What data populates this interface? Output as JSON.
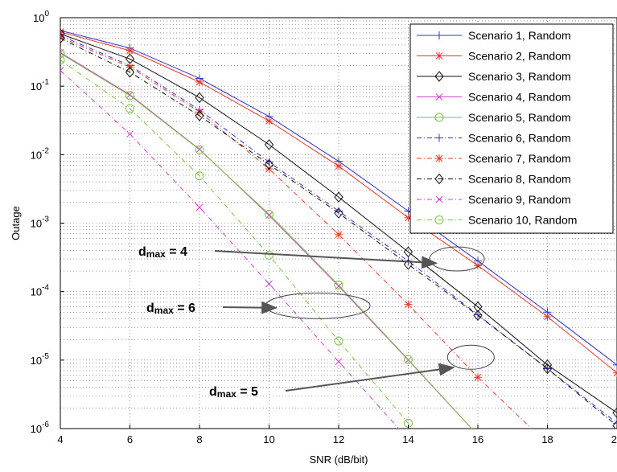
{
  "chart_data": {
    "type": "line",
    "title": "",
    "xlabel": "SNR (dB/bit)",
    "ylabel": "Outage",
    "xlim": [
      4,
      20
    ],
    "ylim": [
      1e-06,
      1
    ],
    "yscale": "log",
    "grid": true,
    "legend_position": "top-right",
    "x_ticks": [
      4,
      6,
      8,
      10,
      12,
      14,
      16,
      18,
      20
    ],
    "y_ticks": [
      {
        "base": "10",
        "exp": "0",
        "value": 1
      },
      {
        "base": "10",
        "exp": "-1",
        "value": 0.1
      },
      {
        "base": "10",
        "exp": "-2",
        "value": 0.01
      },
      {
        "base": "10",
        "exp": "-3",
        "value": 0.001
      },
      {
        "base": "10",
        "exp": "-4",
        "value": 0.0001
      },
      {
        "base": "10",
        "exp": "-5",
        "value": 1e-05
      },
      {
        "base": "10",
        "exp": "-6",
        "value": 1e-06
      }
    ],
    "series": [
      {
        "name": "Scenario 1, Random",
        "color": "#3333cc",
        "dash": "solid",
        "marker": "plus",
        "x": [
          4,
          6,
          8,
          10,
          12,
          14,
          16,
          18,
          20
        ],
        "y": [
          0.65,
          0.36,
          0.13,
          0.036,
          0.008,
          0.0015,
          0.00028,
          5e-05,
          8.5e-06
        ]
      },
      {
        "name": "Scenario 2, Random",
        "color": "#e23b2e",
        "dash": "solid",
        "marker": "star",
        "x": [
          4,
          6,
          8,
          10,
          12,
          14,
          16,
          18,
          20
        ],
        "y": [
          0.62,
          0.33,
          0.115,
          0.031,
          0.0068,
          0.0012,
          0.00024,
          4.3e-05,
          6.5e-06
        ]
      },
      {
        "name": "Scenario 3, Random",
        "color": "#111111",
        "dash": "solid",
        "marker": "diamond",
        "x": [
          4,
          6,
          8,
          10,
          12,
          14,
          16,
          18,
          20
        ],
        "y": [
          0.58,
          0.25,
          0.068,
          0.014,
          0.0024,
          0.00038,
          6e-05,
          8.5e-06,
          1.7e-06
        ]
      },
      {
        "name": "Scenario 4, Random",
        "color": "#cc44cc",
        "dash": "solid",
        "marker": "x",
        "x": [
          4,
          6,
          8,
          10,
          12,
          14,
          16
        ],
        "y": [
          0.31,
          0.075,
          0.012,
          0.0013,
          0.00012,
          1e-05,
          8e-07
        ]
      },
      {
        "name": "Scenario 5, Random",
        "color": "#7cc242",
        "dash": "solid",
        "marker": "circle",
        "x": [
          4,
          6,
          8,
          10,
          12,
          14,
          16
        ],
        "y": [
          0.3,
          0.073,
          0.0118,
          0.00135,
          0.000125,
          1.02e-05,
          8e-07
        ]
      },
      {
        "name": "Scenario 6, Random",
        "color": "#3333cc",
        "dash": "dash-dot",
        "marker": "plus",
        "x": [
          4,
          6,
          8,
          10,
          12,
          14,
          16,
          18,
          20
        ],
        "y": [
          0.55,
          0.2,
          0.045,
          0.0078,
          0.0015,
          0.00028,
          4.6e-05,
          7.5e-06,
          1.2e-06
        ]
      },
      {
        "name": "Scenario 7, Random",
        "color": "#e23b2e",
        "dash": "dash-dot",
        "marker": "star",
        "x": [
          4,
          6,
          8,
          10,
          12,
          14,
          16,
          18
        ],
        "y": [
          0.52,
          0.19,
          0.042,
          0.0062,
          0.00068,
          6.5e-05,
          5.6e-06,
          6e-07
        ]
      },
      {
        "name": "Scenario 8, Random",
        "color": "#111111",
        "dash": "dash-dot",
        "marker": "diamond",
        "x": [
          4,
          6,
          8,
          10,
          12,
          14,
          16,
          18,
          20
        ],
        "y": [
          0.5,
          0.16,
          0.037,
          0.0072,
          0.0014,
          0.00025,
          4.5e-05,
          7.5e-06,
          1.1e-06
        ]
      },
      {
        "name": "Scenario 9, Random",
        "color": "#cc44cc",
        "dash": "dash-dot",
        "marker": "x",
        "x": [
          4,
          6,
          8,
          10,
          12,
          14
        ],
        "y": [
          0.17,
          0.02,
          0.0017,
          0.00013,
          9.5e-06,
          7e-07
        ]
      },
      {
        "name": "Scenario 10, Random",
        "color": "#7cc242",
        "dash": "dash-dot",
        "marker": "circle",
        "x": [
          4,
          6,
          8,
          10,
          12,
          14
        ],
        "y": [
          0.24,
          0.047,
          0.0049,
          0.00034,
          1.9e-05,
          1.2e-06
        ]
      }
    ],
    "annotations": [
      {
        "base": "d",
        "subscript": "max",
        "text": " = 4",
        "arrow_to": {
          "x": 14.8,
          "y": 0.00026
        },
        "ellipse": {
          "x": 15.4,
          "y": 0.0003
        }
      },
      {
        "base": "d",
        "subscript": "max",
        "text": " = 6",
        "arrow_to": {
          "x": 10.2,
          "y": 5.8e-05
        },
        "ellipse": {
          "x": 11.4,
          "y": 6.2e-05
        }
      },
      {
        "base": "d",
        "subscript": "max",
        "text": " = 5",
        "arrow_to": {
          "x": 15.3,
          "y": 7.8e-06
        },
        "ellipse": {
          "x": 15.8,
          "y": 1.1e-05
        }
      }
    ]
  }
}
